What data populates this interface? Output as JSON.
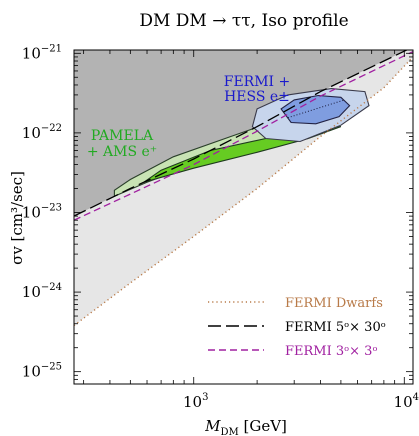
{
  "chart_data": {
    "type": "area",
    "title": "DM DM → ττ,  Iso profile",
    "xlabel": "M",
    "xlabel_sub": "DM",
    "xlabel_unit": "[GeV]",
    "ylabel": "σv  [cm³/sec]",
    "x_scale": "log",
    "y_scale": "log",
    "xlim": [
      270,
      11000
    ],
    "ylim": [
      7e-26,
      1.1e-21
    ],
    "x_ticks": [
      {
        "value": 1000,
        "base": "10",
        "exp": "3"
      },
      {
        "value": 10000,
        "base": "10",
        "exp": "4"
      }
    ],
    "y_ticks": [
      {
        "value": 1e-25,
        "base": "10",
        "exp": "−25"
      },
      {
        "value": 1e-24,
        "base": "10",
        "exp": "−24"
      },
      {
        "value": 1e-23,
        "base": "10",
        "exp": "−23"
      },
      {
        "value": 1e-22,
        "base": "10",
        "exp": "−22"
      },
      {
        "value": 1e-21,
        "base": "10",
        "exp": "−21"
      }
    ],
    "constraints": [
      {
        "name": "FERMI Dwarfs",
        "style": "dotted",
        "color": "#b87a48",
        "fill": "#e6e6e6",
        "points": [
          [
            270,
            3.8e-25
          ],
          [
            500,
            1.3e-24
          ],
          [
            1000,
            5e-24
          ],
          [
            2000,
            2e-23
          ],
          [
            4000,
            9e-23
          ],
          [
            8000,
            3.7e-22
          ],
          [
            11000,
            9e-22
          ]
        ]
      },
      {
        "name": "FERMI 5°× 30°",
        "style": "long-dash",
        "color": "#000000",
        "fill": "#b3b3b3",
        "points": [
          [
            270,
            9e-24
          ],
          [
            500,
            2e-23
          ],
          [
            1000,
            4.7e-23
          ],
          [
            2000,
            1.2e-22
          ],
          [
            4000,
            3.3e-22
          ],
          [
            8000,
            8e-22
          ],
          [
            11000,
            1.2e-21
          ]
        ]
      },
      {
        "name": "FERMI 3°× 3°",
        "style": "dash",
        "color": "#a020a0",
        "fill": "none",
        "points": [
          [
            270,
            8e-24
          ],
          [
            500,
            1.7e-23
          ],
          [
            1000,
            4e-23
          ],
          [
            2000,
            1.05e-22
          ],
          [
            4000,
            2.9e-22
          ],
          [
            8000,
            7e-22
          ],
          [
            11000,
            1.05e-21
          ]
        ]
      }
    ],
    "regions": [
      {
        "name": "PAMELA + AMS e⁺",
        "label_lines": [
          "PAMELA",
          "+ AMS e⁺"
        ],
        "color": "#22aa22",
        "contours": [
          {
            "level": "outer",
            "fill": "#c8e3b4",
            "stroke": "#2b3f2b",
            "points": [
              [
                420,
                1.6e-23
              ],
              [
                600,
                2.4e-23
              ],
              [
                1000,
                4e-23
              ],
              [
                2000,
                6.5e-23
              ],
              [
                3500,
                1.1e-22
              ],
              [
                5000,
                1.7e-22
              ],
              [
                6000,
                2.1e-22
              ],
              [
                5000,
                2.4e-22
              ],
              [
                3000,
                1.7e-22
              ],
              [
                1500,
                9e-23
              ],
              [
                800,
                5e-23
              ],
              [
                500,
                2.6e-23
              ],
              [
                420,
                1.9e-23
              ]
            ]
          },
          {
            "level": "inner",
            "fill": "#66cc22",
            "stroke": "#1e3a1e",
            "points": [
              [
                580,
                2.4e-23
              ],
              [
                1000,
                3.6e-23
              ],
              [
                2000,
                5.7e-23
              ],
              [
                3500,
                8.5e-23
              ],
              [
                5000,
                1.2e-22
              ],
              [
                4000,
                1.15e-22
              ],
              [
                2200,
                8.5e-23
              ],
              [
                1200,
                6e-23
              ],
              [
                700,
                3.4e-23
              ]
            ]
          }
        ]
      },
      {
        "name": "FERMI + HESS e±",
        "label_lines": [
          "FERMI +",
          "HESS e±"
        ],
        "color": "#1a1acc",
        "contours": [
          {
            "level": "outer",
            "fill": "#c7d5ec",
            "stroke": "#3a3a4a",
            "points": [
              [
                1900,
                1.2e-22
              ],
              [
                2200,
                8.5e-23
              ],
              [
                3200,
                7.8e-23
              ],
              [
                5000,
                1.25e-22
              ],
              [
                6800,
                2.2e-22
              ],
              [
                6500,
                3.3e-22
              ],
              [
                4500,
                3.6e-22
              ],
              [
                2800,
                3e-22
              ],
              [
                2000,
                2e-22
              ]
            ]
          },
          {
            "level": "inner",
            "fill": "#7f9de0",
            "stroke": "#222244",
            "points": [
              [
                2600,
                2e-22
              ],
              [
                2900,
                1.35e-22
              ],
              [
                3800,
                1.3e-22
              ],
              [
                4900,
                1.6e-22
              ],
              [
                5500,
                2.2e-22
              ],
              [
                5000,
                2.8e-22
              ],
              [
                3900,
                2.95e-22
              ],
              [
                3000,
                2.6e-22
              ]
            ]
          }
        ],
        "best_fit_line": [
          [
            2800,
            1.55e-22
          ],
          [
            5200,
            2.6e-22
          ]
        ]
      }
    ],
    "legend": {
      "placement": "bottom-right",
      "entries": [
        {
          "label": "FERMI Dwarfs",
          "color": "#b87a48",
          "style": "dotted"
        },
        {
          "label": "FERMI 5ᵒ× 30ᵒ",
          "color": "#000000",
          "style": "long-dash"
        },
        {
          "label": "FERMI 3ᵒ× 3ᵒ",
          "color": "#a020a0",
          "style": "dash"
        }
      ]
    }
  }
}
